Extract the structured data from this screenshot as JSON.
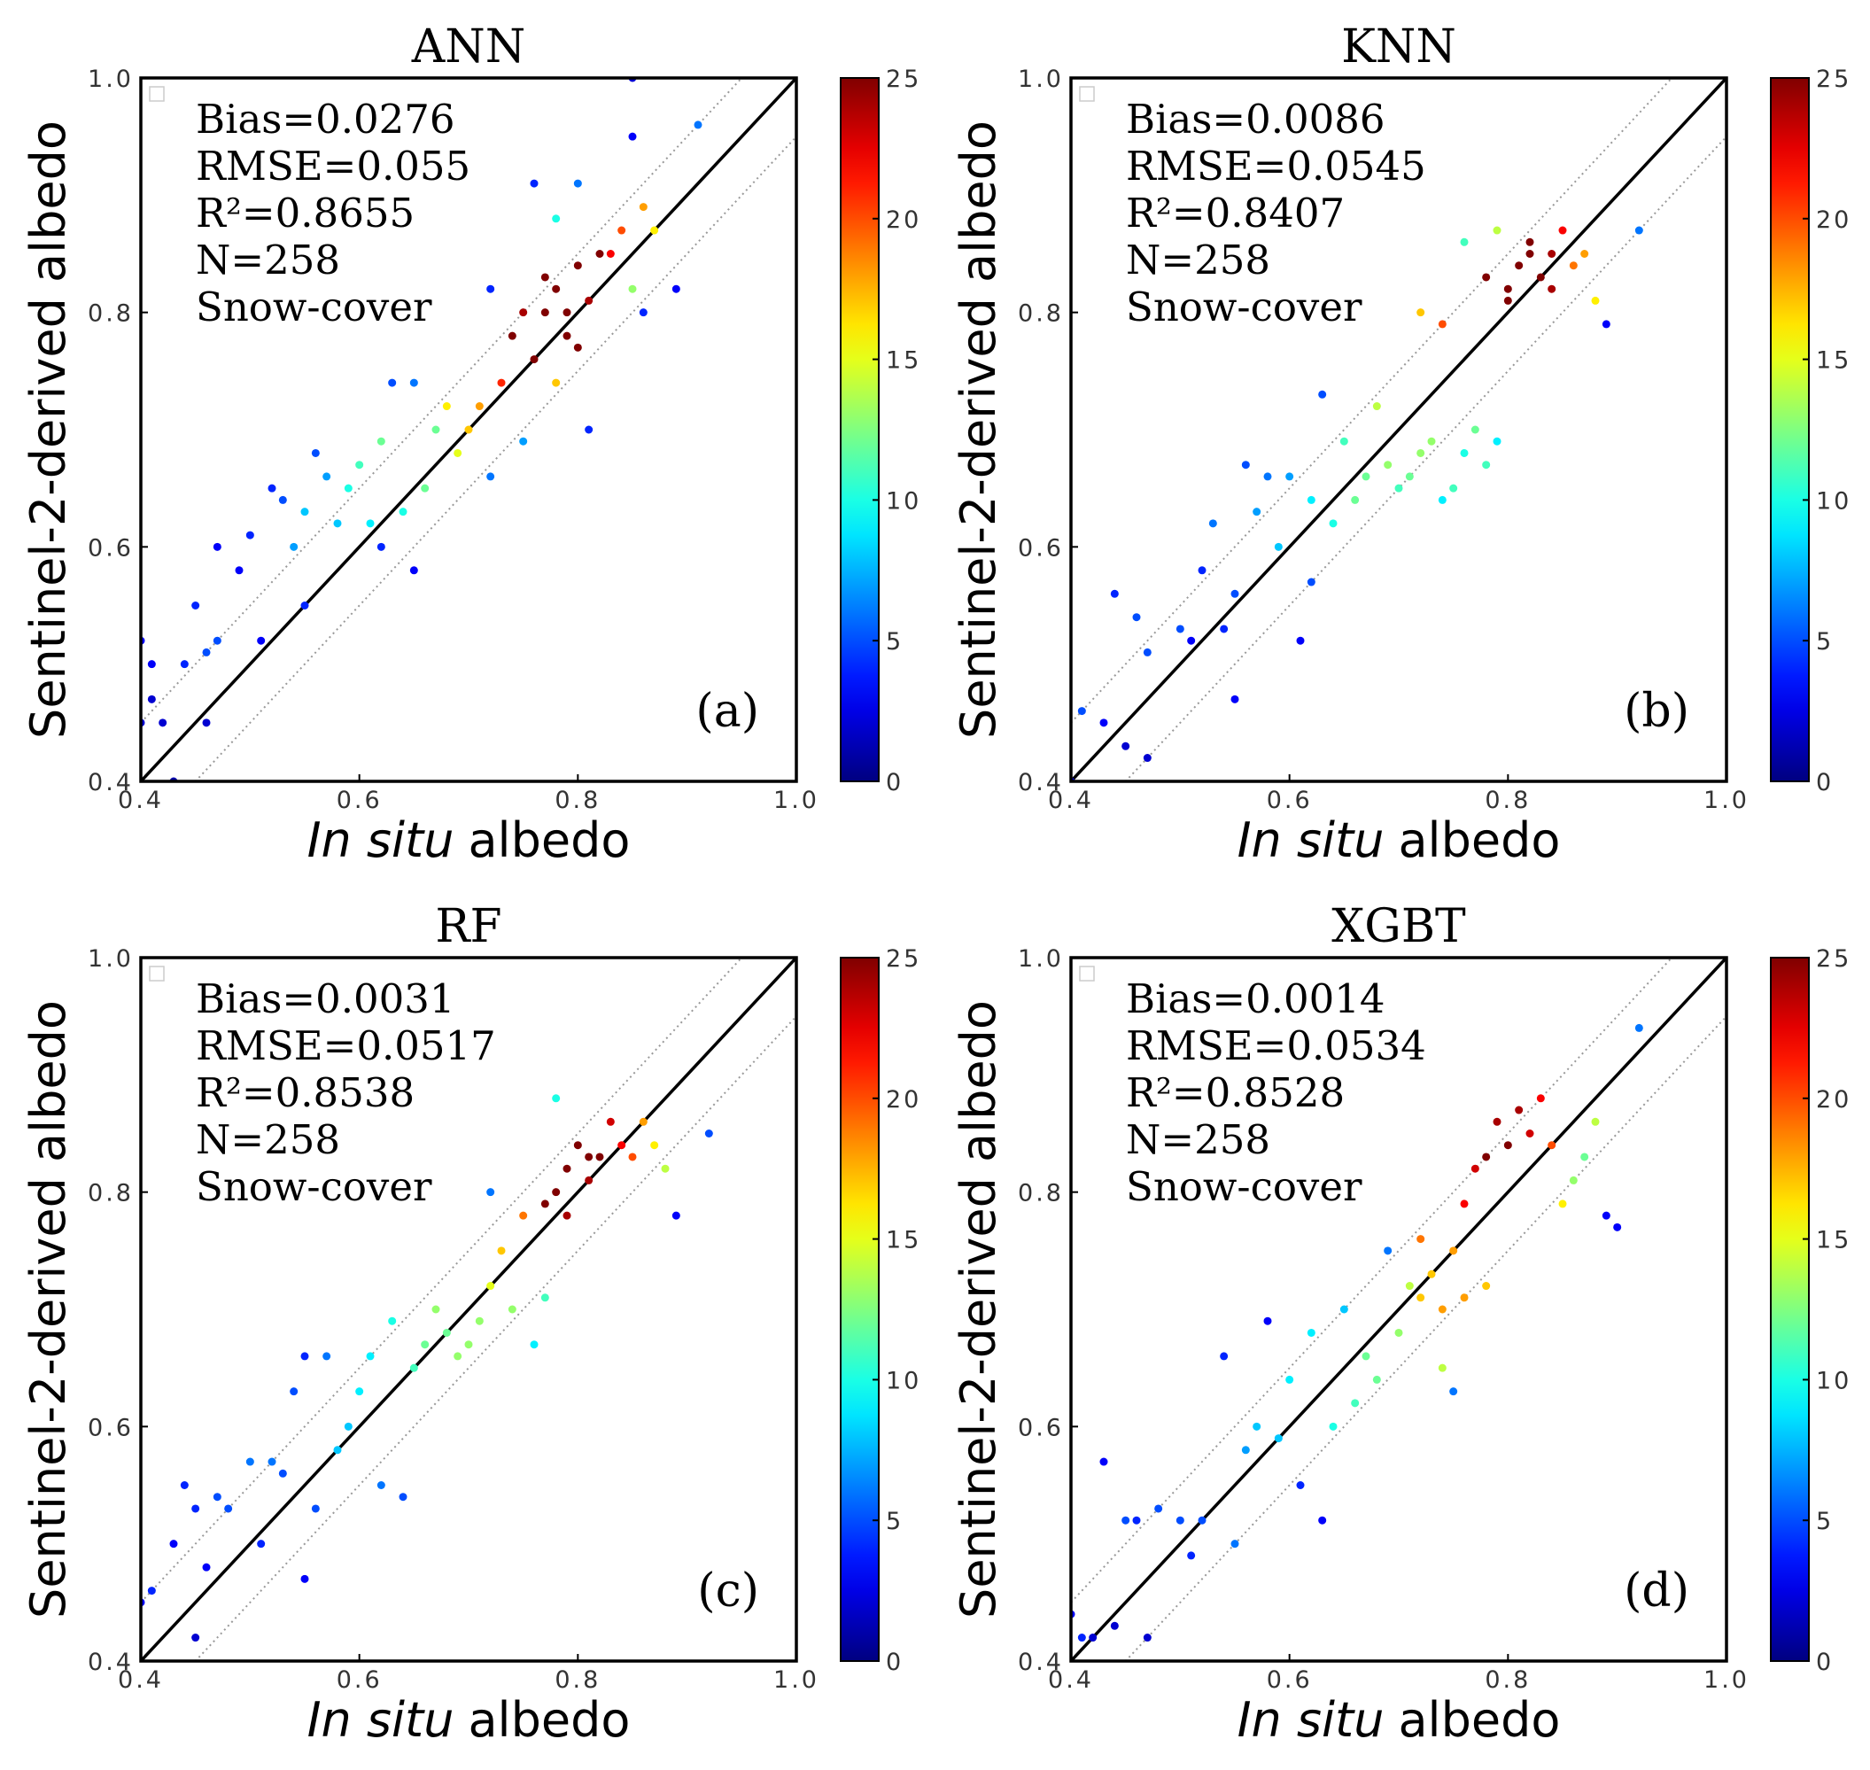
{
  "chart_data": [
    {
      "type": "scatter",
      "title": "ANN",
      "panel_label": "(a)",
      "stats": [
        "Bias=0.0276",
        "RMSE=0.055",
        "R²=0.8655",
        "N=258",
        "Snow-cover"
      ],
      "xlabel_italic": "In situ",
      "xlabel": "albedo",
      "ylabel": "Sentinel-2-derived albedo",
      "xlim": [
        0.4,
        1
      ],
      "ylim": [
        0.4,
        1
      ],
      "xticks": [
        0.4,
        0.6,
        0.8,
        {
          "value": 1,
          "label": "1.0"
        }
      ],
      "yticks": [
        0.4,
        0.6,
        0.8,
        {
          "value": 1,
          "label": "1.0"
        }
      ],
      "clim": [
        0,
        25
      ],
      "cticks": [
        0,
        5,
        10,
        15,
        20,
        25
      ],
      "colormap": "jet",
      "reference_lines": [
        {
          "intercept": 0,
          "style": "solid"
        },
        {
          "intercept": 0.05,
          "style": "dotted"
        },
        {
          "intercept": -0.05,
          "style": "dotted"
        }
      ],
      "x": [
        0.4,
        0.41,
        0.41,
        0.4,
        0.42,
        0.43,
        0.44,
        0.45,
        0.46,
        0.47,
        0.46,
        0.47,
        0.49,
        0.5,
        0.51,
        0.52,
        0.53,
        0.54,
        0.55,
        0.55,
        0.56,
        0.57,
        0.58,
        0.59,
        0.6,
        0.61,
        0.62,
        0.62,
        0.63,
        0.64,
        0.65,
        0.65,
        0.66,
        0.67,
        0.68,
        0.69,
        0.7,
        0.71,
        0.72,
        0.72,
        0.73,
        0.74,
        0.75,
        0.76,
        0.77,
        0.78,
        0.79,
        0.8,
        0.81,
        0.82,
        0.78,
        0.76,
        0.8,
        0.84,
        0.85,
        0.86,
        0.87,
        0.85,
        0.85,
        0.86,
        0.89,
        0.91,
        0.78,
        0.83,
        0.81,
        0.77,
        0.79,
        0.75,
        0.8
      ],
      "y": [
        0.52,
        0.5,
        0.47,
        0.45,
        0.45,
        0.4,
        0.5,
        0.55,
        0.51,
        0.52,
        0.45,
        0.6,
        0.58,
        0.61,
        0.52,
        0.65,
        0.64,
        0.6,
        0.63,
        0.55,
        0.68,
        0.66,
        0.62,
        0.65,
        0.67,
        0.62,
        0.6,
        0.69,
        0.74,
        0.63,
        0.58,
        0.74,
        0.65,
        0.7,
        0.72,
        0.68,
        0.7,
        0.72,
        0.82,
        0.66,
        0.74,
        0.78,
        0.69,
        0.76,
        0.8,
        0.82,
        0.78,
        0.84,
        0.81,
        0.85,
        0.74,
        0.91,
        0.91,
        0.87,
        0.82,
        0.89,
        0.87,
        0.95,
        1.0,
        0.8,
        0.82,
        0.96,
        0.88,
        0.85,
        0.7,
        0.83,
        0.8,
        0.8,
        0.77
      ],
      "c": [
        3,
        3,
        2,
        2,
        2,
        1,
        4,
        4,
        5,
        5,
        2,
        3,
        3,
        4,
        3,
        4,
        5,
        7,
        8,
        4,
        5,
        7,
        8,
        10,
        11,
        9,
        4,
        12,
        5,
        10,
        3,
        6,
        12,
        12,
        16,
        15,
        17,
        18,
        4,
        6,
        21,
        25,
        7,
        25,
        25,
        25,
        25,
        25,
        24,
        25,
        17,
        4,
        6,
        20,
        13,
        18,
        16,
        3,
        2,
        4,
        3,
        6,
        10,
        22,
        4,
        25,
        25,
        24,
        25
      ]
    },
    {
      "type": "scatter",
      "title": "KNN",
      "panel_label": "(b)",
      "stats": [
        "Bias=0.0086",
        "RMSE=0.0545",
        "R²=0.8407",
        "N=258",
        "Snow-cover"
      ],
      "xlabel_italic": "In situ",
      "xlabel": "albedo",
      "ylabel": "Sentinel-2-derived albedo",
      "xlim": [
        0.4,
        1
      ],
      "ylim": [
        0.4,
        1
      ],
      "xticks": [
        0.4,
        0.6,
        0.8,
        {
          "value": 1,
          "label": "1.0"
        }
      ],
      "yticks": [
        0.4,
        0.6,
        0.8,
        {
          "value": 1,
          "label": "1.0"
        }
      ],
      "clim": [
        0,
        25
      ],
      "cticks": [
        0,
        5,
        10,
        15,
        20,
        25
      ],
      "colormap": "jet",
      "reference_lines": [
        {
          "intercept": 0,
          "style": "solid"
        },
        {
          "intercept": 0.05,
          "style": "dotted"
        },
        {
          "intercept": -0.05,
          "style": "dotted"
        }
      ],
      "x": [
        0.4,
        0.41,
        0.43,
        0.44,
        0.45,
        0.46,
        0.47,
        0.47,
        0.5,
        0.51,
        0.52,
        0.53,
        0.54,
        0.55,
        0.55,
        0.56,
        0.57,
        0.58,
        0.59,
        0.6,
        0.61,
        0.62,
        0.62,
        0.63,
        0.64,
        0.65,
        0.66,
        0.67,
        0.68,
        0.69,
        0.7,
        0.71,
        0.72,
        0.73,
        0.74,
        0.75,
        0.76,
        0.77,
        0.78,
        0.79,
        0.8,
        0.81,
        0.82,
        0.83,
        0.84,
        0.85,
        0.86,
        0.87,
        0.88,
        0.89,
        0.92,
        0.76,
        0.74,
        0.72,
        0.78,
        0.8,
        0.82,
        0.84,
        0.79
      ],
      "y": [
        0.4,
        0.46,
        0.45,
        0.56,
        0.43,
        0.54,
        0.51,
        0.42,
        0.53,
        0.52,
        0.58,
        0.62,
        0.53,
        0.56,
        0.47,
        0.67,
        0.63,
        0.66,
        0.6,
        0.66,
        0.52,
        0.64,
        0.57,
        0.73,
        0.62,
        0.69,
        0.64,
        0.66,
        0.72,
        0.67,
        0.65,
        0.66,
        0.68,
        0.69,
        0.64,
        0.65,
        0.68,
        0.7,
        0.67,
        0.69,
        0.82,
        0.84,
        0.86,
        0.83,
        0.85,
        0.87,
        0.84,
        0.85,
        0.81,
        0.79,
        0.87,
        0.86,
        0.79,
        0.8,
        0.83,
        0.81,
        0.85,
        0.82,
        0.87
      ],
      "c": [
        2,
        5,
        3,
        4,
        2,
        5,
        5,
        2,
        5,
        3,
        4,
        6,
        4,
        5,
        3,
        5,
        7,
        6,
        8,
        7,
        3,
        9,
        5,
        5,
        10,
        11,
        12,
        12,
        14,
        13,
        11,
        12,
        13,
        13,
        9,
        11,
        10,
        12,
        11,
        9,
        25,
        25,
        25,
        25,
        24,
        22,
        19,
        18,
        16,
        3,
        6,
        11,
        20,
        17,
        25,
        25,
        25,
        24,
        14
      ]
    },
    {
      "type": "scatter",
      "title": "RF",
      "panel_label": "(c)",
      "stats": [
        "Bias=0.0031",
        "RMSE=0.0517",
        "R²=0.8538",
        "N=258",
        "Snow-cover"
      ],
      "xlabel_italic": "In situ",
      "xlabel": "albedo",
      "ylabel": "Sentinel-2-derived albedo",
      "xlim": [
        0.4,
        1
      ],
      "ylim": [
        0.4,
        1
      ],
      "xticks": [
        0.4,
        0.6,
        0.8,
        {
          "value": 1,
          "label": "1.0"
        }
      ],
      "yticks": [
        0.4,
        0.6,
        0.8,
        {
          "value": 1,
          "label": "1.0"
        }
      ],
      "clim": [
        0,
        25
      ],
      "cticks": [
        0,
        5,
        10,
        15,
        20,
        25
      ],
      "colormap": "jet",
      "reference_lines": [
        {
          "intercept": 0,
          "style": "solid"
        },
        {
          "intercept": 0.05,
          "style": "dotted"
        },
        {
          "intercept": -0.05,
          "style": "dotted"
        }
      ],
      "x": [
        0.4,
        0.41,
        0.43,
        0.44,
        0.45,
        0.45,
        0.46,
        0.47,
        0.48,
        0.5,
        0.51,
        0.52,
        0.53,
        0.54,
        0.55,
        0.55,
        0.56,
        0.57,
        0.58,
        0.59,
        0.6,
        0.61,
        0.62,
        0.63,
        0.64,
        0.65,
        0.66,
        0.67,
        0.68,
        0.69,
        0.7,
        0.71,
        0.72,
        0.73,
        0.74,
        0.75,
        0.76,
        0.77,
        0.78,
        0.79,
        0.8,
        0.81,
        0.82,
        0.83,
        0.84,
        0.85,
        0.86,
        0.87,
        0.88,
        0.89,
        0.92,
        0.77,
        0.79,
        0.81,
        0.78,
        0.72
      ],
      "y": [
        0.45,
        0.46,
        0.5,
        0.55,
        0.42,
        0.53,
        0.48,
        0.54,
        0.53,
        0.57,
        0.5,
        0.57,
        0.56,
        0.63,
        0.66,
        0.47,
        0.53,
        0.66,
        0.58,
        0.6,
        0.63,
        0.66,
        0.55,
        0.69,
        0.54,
        0.65,
        0.67,
        0.7,
        0.68,
        0.66,
        0.67,
        0.69,
        0.72,
        0.75,
        0.7,
        0.78,
        0.67,
        0.71,
        0.8,
        0.82,
        0.84,
        0.81,
        0.83,
        0.86,
        0.84,
        0.83,
        0.86,
        0.84,
        0.82,
        0.78,
        0.85,
        0.79,
        0.78,
        0.83,
        0.88,
        0.8
      ],
      "c": [
        3,
        4,
        3,
        4,
        2,
        4,
        3,
        5,
        5,
        6,
        4,
        6,
        5,
        5,
        4,
        3,
        5,
        6,
        8,
        8,
        9,
        9,
        6,
        10,
        5,
        11,
        12,
        13,
        12,
        13,
        13,
        13,
        15,
        17,
        13,
        19,
        9,
        11,
        25,
        25,
        25,
        24,
        25,
        23,
        22,
        20,
        18,
        16,
        14,
        3,
        5,
        25,
        24,
        25,
        10,
        6
      ]
    },
    {
      "type": "scatter",
      "title": "XGBT",
      "panel_label": "(d)",
      "stats": [
        "Bias=0.0014",
        "RMSE=0.0534",
        "R²=0.8528",
        "N=258",
        "Snow-cover"
      ],
      "xlabel_italic": "In situ",
      "xlabel": "albedo",
      "ylabel": "Sentinel-2-derived albedo",
      "xlim": [
        0.4,
        1
      ],
      "ylim": [
        0.4,
        1
      ],
      "xticks": [
        0.4,
        0.6,
        0.8,
        {
          "value": 1,
          "label": "1.0"
        }
      ],
      "yticks": [
        0.4,
        0.6,
        0.8,
        {
          "value": 1,
          "label": "1.0"
        }
      ],
      "clim": [
        0,
        25
      ],
      "cticks": [
        0,
        5,
        10,
        15,
        20,
        25
      ],
      "colormap": "jet",
      "reference_lines": [
        {
          "intercept": 0,
          "style": "solid"
        },
        {
          "intercept": 0.05,
          "style": "dotted"
        },
        {
          "intercept": -0.05,
          "style": "dotted"
        }
      ],
      "x": [
        0.4,
        0.41,
        0.42,
        0.43,
        0.44,
        0.45,
        0.46,
        0.47,
        0.48,
        0.5,
        0.51,
        0.52,
        0.54,
        0.55,
        0.56,
        0.57,
        0.58,
        0.59,
        0.6,
        0.61,
        0.62,
        0.63,
        0.64,
        0.65,
        0.66,
        0.67,
        0.68,
        0.69,
        0.7,
        0.71,
        0.72,
        0.73,
        0.74,
        0.75,
        0.76,
        0.77,
        0.78,
        0.79,
        0.8,
        0.81,
        0.82,
        0.83,
        0.84,
        0.85,
        0.86,
        0.87,
        0.88,
        0.89,
        0.9,
        0.92,
        0.76,
        0.78,
        0.74,
        0.72,
        0.75
      ],
      "y": [
        0.44,
        0.42,
        0.42,
        0.57,
        0.43,
        0.52,
        0.52,
        0.42,
        0.53,
        0.52,
        0.49,
        0.52,
        0.66,
        0.5,
        0.58,
        0.6,
        0.69,
        0.59,
        0.64,
        0.55,
        0.68,
        0.52,
        0.6,
        0.7,
        0.62,
        0.66,
        0.64,
        0.75,
        0.68,
        0.72,
        0.71,
        0.73,
        0.7,
        0.75,
        0.79,
        0.82,
        0.83,
        0.86,
        0.84,
        0.87,
        0.85,
        0.88,
        0.84,
        0.79,
        0.81,
        0.83,
        0.86,
        0.78,
        0.77,
        0.94,
        0.71,
        0.72,
        0.65,
        0.76,
        0.63
      ],
      "c": [
        3,
        4,
        2,
        3,
        2,
        5,
        4,
        2,
        5,
        5,
        4,
        5,
        4,
        6,
        7,
        8,
        3,
        8,
        9,
        4,
        9,
        3,
        10,
        8,
        11,
        12,
        12,
        6,
        13,
        14,
        17,
        17,
        18,
        18,
        22,
        23,
        25,
        24,
        25,
        24,
        23,
        22,
        20,
        16,
        13,
        12,
        14,
        3,
        3,
        6,
        18,
        17,
        14,
        19,
        6
      ]
    }
  ]
}
